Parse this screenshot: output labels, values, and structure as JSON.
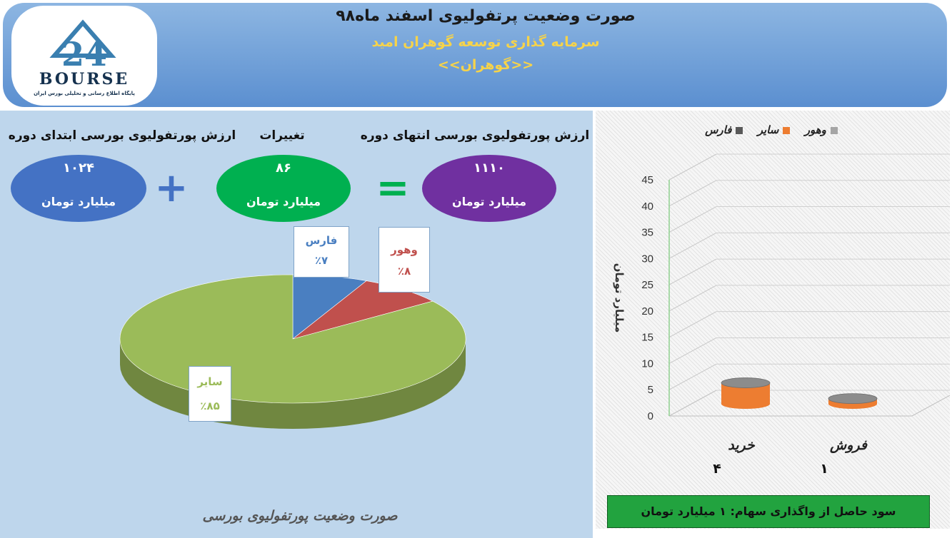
{
  "header": {
    "title": "صورت وضعیت پرتفولیوی اسفند ماه۹۸",
    "subtitle": "سرمایه گذاری توسعه گوهران امید",
    "ticker": "<<گوهران>>"
  },
  "logo": {
    "number": "24",
    "brand": "BOURSE",
    "tagline": "پایگاه اطلاع رسانی و تحلیلی بورس ایران"
  },
  "summary": {
    "start": {
      "label": "ارزش پورتفولیوی بورسی ابتدای دوره",
      "value": "۱۰۲۴",
      "unit": "میلیارد تومان",
      "color": "#4472c4"
    },
    "change": {
      "label": "تغییرات",
      "value": "۸۶",
      "unit": "میلیارد تومان",
      "color": "#00b050"
    },
    "end": {
      "label": "ارزش پورتفولیوی بورسی انتهای دوره",
      "value": "۱۱۱۰",
      "unit": "میلیارد تومان",
      "color": "#7030a0"
    },
    "plus_sign": "+",
    "equals_sign": "="
  },
  "chart_data": [
    {
      "type": "pie",
      "labels": [
        "فارس",
        "وهور",
        "سایر"
      ],
      "values": [
        7,
        8,
        85
      ],
      "value_labels": [
        "٪۷",
        "٪۸",
        "٪۸۵"
      ],
      "colors": [
        "#4a7fc1",
        "#c0504d",
        "#9bbb59"
      ],
      "caption": "صورت وضعیت پورتفولیوی بورسی"
    },
    {
      "type": "bar",
      "categories": [
        "خرید",
        "فروش"
      ],
      "category_values": [
        "۴",
        "۱"
      ],
      "series": [
        {
          "name": "وهور",
          "values": [
            0,
            0
          ],
          "color": "#a5a5a5"
        },
        {
          "name": "سایر",
          "values": [
            4,
            1
          ],
          "color": "#ed7d31"
        },
        {
          "name": "فارس",
          "values": [
            0,
            0
          ],
          "color": "#595959"
        }
      ],
      "ylabel": "میلیارد تومان",
      "ylim": [
        0,
        45
      ],
      "yticks": [
        0,
        5,
        10,
        15,
        20,
        25,
        30,
        35,
        40,
        45
      ],
      "legend": "top"
    }
  ],
  "profit": {
    "text": "سود حاصل از واگذاری سهام: ۱ میلیارد تومان"
  }
}
